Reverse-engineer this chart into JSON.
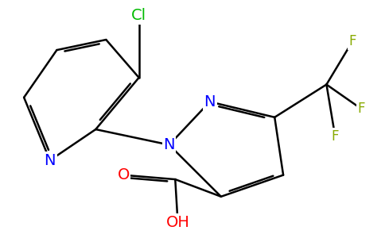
{
  "background_color": "#ffffff",
  "bond_color": "#000000",
  "bond_width": 1.8,
  "atom_colors": {
    "N": "#0000ff",
    "O": "#ff0000",
    "Cl": "#00bb00",
    "F": "#88aa00",
    "C": "#000000"
  },
  "font_size_atom": 14,
  "font_size_F": 12,
  "font_size_Cl": 14
}
